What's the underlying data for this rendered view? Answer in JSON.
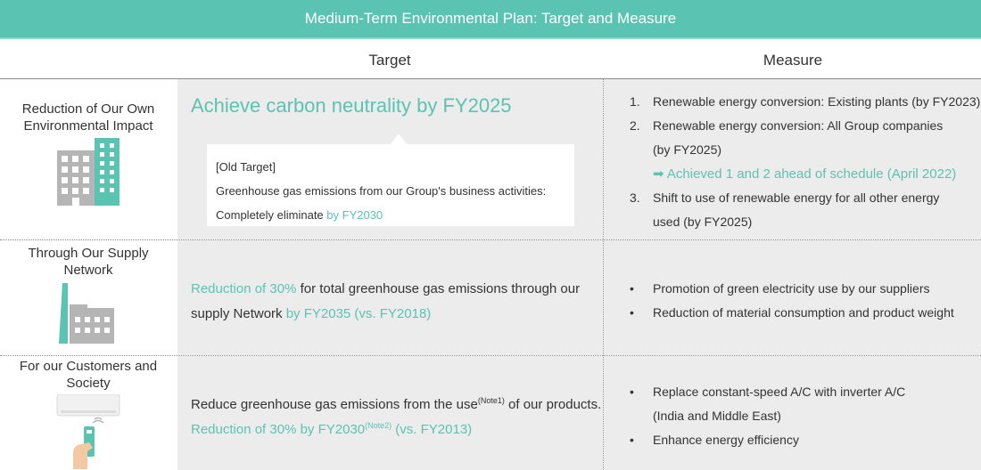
{
  "title": "Medium-Term Environmental Plan: Target and Measure",
  "headers": {
    "target": "Target",
    "measure": "Measure"
  },
  "colors": {
    "accent": "#5bc3b2",
    "cell_gray": "#ececec",
    "building_gray": "#b5b5b5"
  },
  "rows": [
    {
      "label_line1": "Reduction of Our Own",
      "label_line2": "Environmental Impact",
      "icon": "building-icon",
      "target_main": "Achieve carbon neutrality by FY2025",
      "old_target": {
        "heading": "[Old Target]",
        "line1": "Greenhouse gas emissions from our Group's business activities:",
        "line2_plain": "Completely eliminate ",
        "line2_accent": "by FY2030"
      },
      "measures": {
        "m1_num": "1.",
        "m1": "Renewable energy conversion: Existing plants (by FY2023)",
        "m2_num": "2.",
        "m2_line1": "Renewable energy conversion: All Group companies",
        "m2_line2": "(by FY2025)",
        "m2_note": "➡ Achieved 1 and 2 ahead of schedule (April 2022)",
        "m3_num": "3.",
        "m3_line1": "Shift to use of renewable energy for all other energy",
        "m3_line2": "used (by FY2025)"
      }
    },
    {
      "label_line1": "Through Our Supply",
      "label_line2": "Network",
      "icon": "factory-icon",
      "target_line1_accent": "Reduction of 30%",
      "target_line1_plain": " for total greenhouse gas emissions through our",
      "target_line2_plain": "supply Network ",
      "target_line2_accent": "by FY2035 (vs. FY2018)",
      "measures": {
        "bullet": "•",
        "b1": "Promotion of green electricity use by our suppliers",
        "b2": "Reduction of material consumption and product weight"
      }
    },
    {
      "label_line1": "For our Customers and",
      "label_line2": "Society",
      "icon": "air-conditioner-icon",
      "target_line1_a": "Reduce greenhouse gas emissions from the use",
      "target_line1_note": "(Note1)",
      "target_line1_b": " of our products.",
      "target_line2_a": "Reduction of 30% by FY2030",
      "target_line2_note": "(Note2)",
      "target_line2_b": " (vs. FY2013)",
      "measures": {
        "bullet": "•",
        "b1_line1": "Replace constant-speed A/C with inverter A/C",
        "b1_line2": "(India and Middle East)",
        "b2": "Enhance energy efficiency"
      }
    }
  ]
}
